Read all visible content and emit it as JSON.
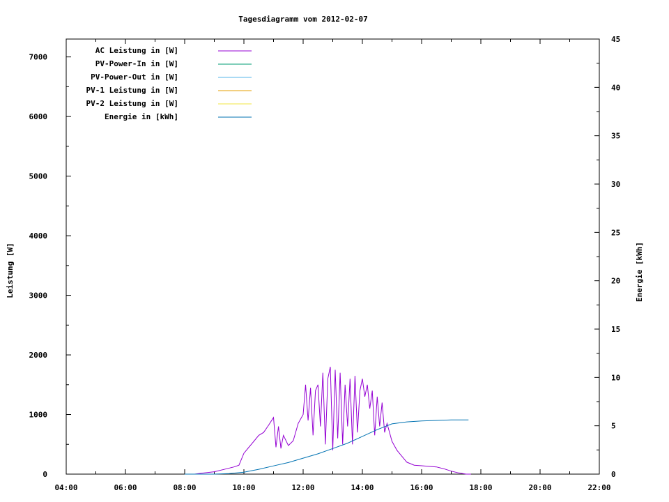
{
  "chart_data": {
    "type": "line",
    "title": "Tagesdiagramm vom 2012-02-07",
    "ylabel": "Leistung [W]",
    "y2label": "Energie [kWh]",
    "xlabel": "",
    "xlim": [
      "04:00",
      "22:00"
    ],
    "ylim": [
      0,
      7300
    ],
    "y2lim": [
      0,
      45
    ],
    "x_ticks": [
      "04:00",
      "06:00",
      "08:00",
      "10:00",
      "12:00",
      "14:00",
      "16:00",
      "18:00",
      "20:00",
      "22:00"
    ],
    "y_ticks": [
      0,
      1000,
      2000,
      3000,
      4000,
      5000,
      6000,
      7000
    ],
    "y2_ticks": [
      0,
      5,
      10,
      15,
      20,
      25,
      30,
      35,
      40,
      45
    ],
    "grid": false,
    "legend_position": "top-left",
    "series": [
      {
        "name": "AC Leistung in [W]",
        "axis": "left",
        "color": "#9400d3",
        "x": [
          "08:20",
          "08:40",
          "09:00",
          "09:20",
          "09:40",
          "09:50",
          "10:00",
          "10:10",
          "10:20",
          "10:30",
          "10:40",
          "10:50",
          "11:00",
          "11:05",
          "11:10",
          "11:15",
          "11:20",
          "11:30",
          "11:40",
          "11:50",
          "12:00",
          "12:05",
          "12:10",
          "12:15",
          "12:20",
          "12:25",
          "12:30",
          "12:35",
          "12:40",
          "12:45",
          "12:50",
          "12:55",
          "13:00",
          "13:05",
          "13:10",
          "13:15",
          "13:20",
          "13:25",
          "13:30",
          "13:35",
          "13:40",
          "13:45",
          "13:50",
          "13:55",
          "14:00",
          "14:05",
          "14:10",
          "14:15",
          "14:20",
          "14:25",
          "14:30",
          "14:35",
          "14:40",
          "14:45",
          "14:50",
          "15:00",
          "15:10",
          "15:20",
          "15:30",
          "15:45",
          "16:00",
          "16:15",
          "16:30",
          "16:45",
          "17:00",
          "17:15",
          "17:30",
          "17:40"
        ],
        "values": [
          0,
          20,
          40,
          80,
          120,
          150,
          350,
          450,
          550,
          650,
          700,
          820,
          950,
          450,
          800,
          430,
          650,
          480,
          560,
          850,
          1000,
          1500,
          900,
          1450,
          650,
          1400,
          1500,
          800,
          1700,
          500,
          1600,
          1800,
          400,
          1750,
          600,
          1700,
          500,
          1500,
          800,
          1600,
          500,
          1650,
          700,
          1400,
          1600,
          1300,
          1500,
          1100,
          1400,
          650,
          1300,
          800,
          1200,
          700,
          850,
          550,
          400,
          300,
          200,
          150,
          140,
          130,
          120,
          90,
          50,
          20,
          0,
          0
        ]
      },
      {
        "name": "PV-Power-In in [W]",
        "axis": "left",
        "color": "#009e73",
        "x": [],
        "values": []
      },
      {
        "name": "PV-Power-Out in [W]",
        "axis": "left",
        "color": "#56b4e9",
        "x": [],
        "values": []
      },
      {
        "name": "PV-1 Leistung in [W]",
        "axis": "left",
        "color": "#e69f00",
        "x": [],
        "values": []
      },
      {
        "name": "PV-2 Leistung in [W]",
        "axis": "left",
        "color": "#f0e442",
        "x": [],
        "values": []
      },
      {
        "name": "Energie in [kWh]",
        "axis": "right",
        "color": "#0072b2",
        "x": [
          "08:00",
          "09:00",
          "09:30",
          "10:00",
          "10:30",
          "11:00",
          "11:30",
          "12:00",
          "12:30",
          "13:00",
          "13:30",
          "14:00",
          "14:30",
          "15:00",
          "15:30",
          "16:00",
          "16:30",
          "17:00",
          "17:35"
        ],
        "values": [
          0,
          0,
          0.05,
          0.2,
          0.5,
          0.85,
          1.2,
          1.65,
          2.1,
          2.65,
          3.2,
          3.9,
          4.6,
          5.2,
          5.4,
          5.5,
          5.55,
          5.6,
          5.6
        ]
      }
    ]
  }
}
